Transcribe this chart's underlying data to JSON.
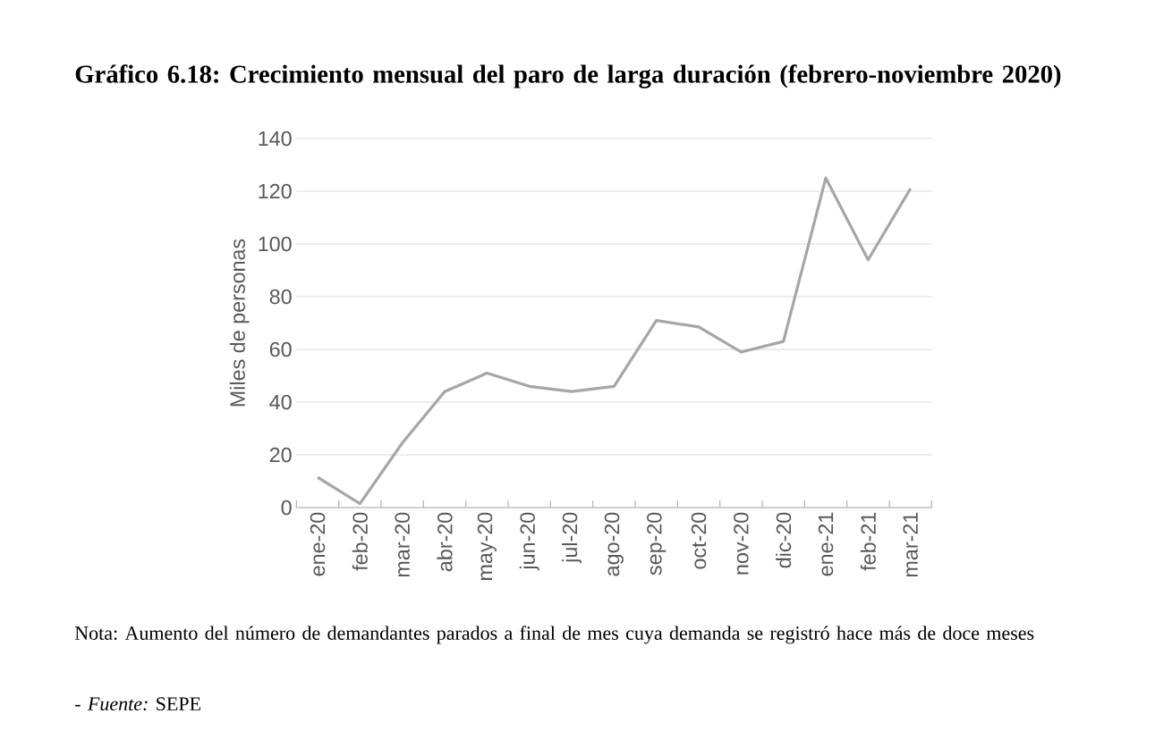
{
  "chart_data": {
    "type": "line",
    "title": "Gráfico 6.18: Crecimiento mensual del paro de larga duración (febrero-noviembre 2020)",
    "ylabel": "Miles de personas",
    "categories": [
      "ene-20",
      "feb-20",
      "mar-20",
      "abr-20",
      "may-20",
      "jun-20",
      "jul-20",
      "ago-20",
      "sep-20",
      "oct-20",
      "nov-20",
      "dic-20",
      "ene-21",
      "feb-21",
      "mar-21"
    ],
    "values": [
      11.5,
      1.5,
      24.5,
      44,
      51,
      46,
      44,
      46,
      71,
      68.5,
      59,
      63,
      125,
      94,
      121
    ],
    "color": "#a6a6a6",
    "ylim": [
      0,
      140
    ],
    "yticks": [
      0,
      20,
      40,
      60,
      80,
      100,
      120,
      140
    ],
    "grid": "y",
    "annotations": [
      "Nota: Aumento del número de demandantes parados a final de mes cuya demanda se registró hace más de doce meses",
      "- *Fuente:* SEPE"
    ]
  }
}
